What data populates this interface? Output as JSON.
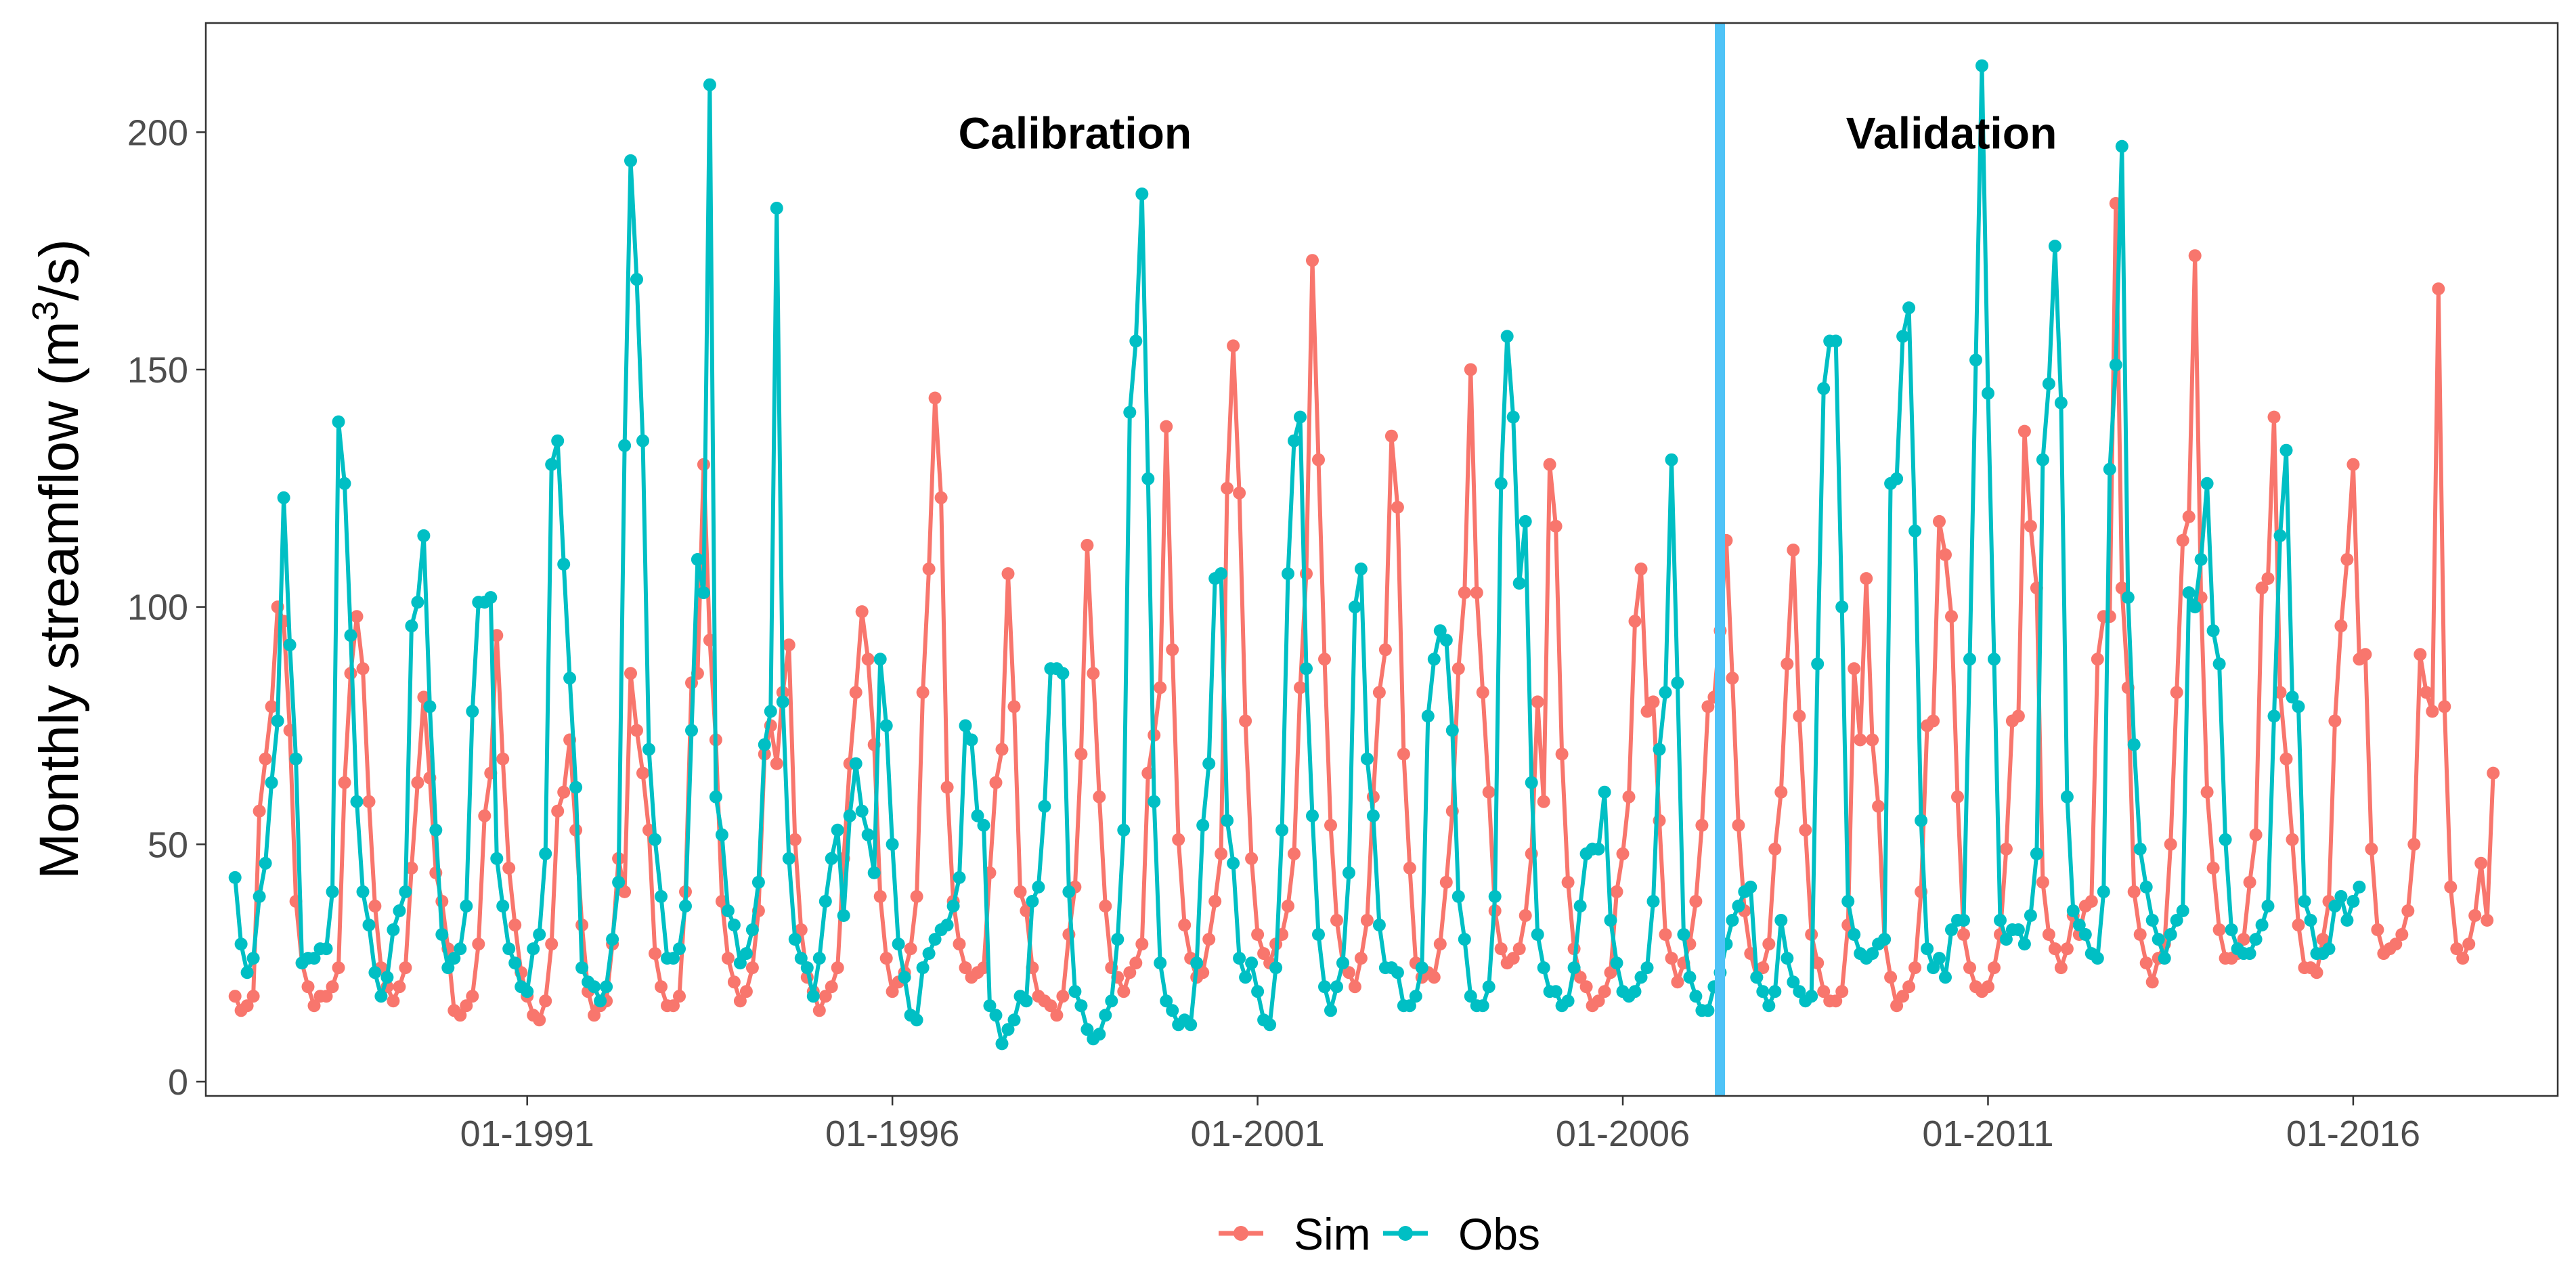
{
  "chart_data": {
    "type": "line",
    "title": "",
    "xlabel": "",
    "ylabel": "Monthly streamflow (m",
    "ylabel_superscript": "3",
    "ylabel_suffix": "/s)",
    "x_start": "1987-01",
    "x_range_years": [
      1986.6,
      2018.8
    ],
    "ylim": [
      -3,
      223
    ],
    "y_ticks": [
      0,
      50,
      100,
      150,
      200
    ],
    "y_tick_labels": [
      "0",
      "50",
      "100",
      "150",
      "200"
    ],
    "x_tick_years": [
      1991,
      1996,
      2001,
      2006,
      2011,
      2016
    ],
    "x_tick_labels": [
      "01-1991",
      "01-1996",
      "01-2001",
      "01-2006",
      "01-2011",
      "01-2016"
    ],
    "split_date_year": 2007.33,
    "split_color": "#4fc3f7",
    "annotations": [
      {
        "text": "Calibration",
        "x_year": 1998.5,
        "y": 200
      },
      {
        "text": "Validation",
        "x_year": 2010.5,
        "y": 200
      }
    ],
    "legend_position": "bottom",
    "series": [
      {
        "name": "Sim",
        "color": "#f8766d",
        "values": [
          18,
          15,
          16,
          18,
          57,
          68,
          79,
          100,
          97,
          74,
          38,
          25,
          20,
          16,
          18,
          18,
          20,
          24,
          63,
          86,
          98,
          87,
          59,
          37,
          24,
          20,
          17,
          20,
          24,
          45,
          63,
          81,
          64,
          44,
          38,
          28,
          15,
          14,
          16,
          18,
          29,
          56,
          65,
          94,
          68,
          45,
          33,
          23,
          18,
          14,
          13,
          17,
          29,
          57,
          61,
          72,
          53,
          33,
          19,
          14,
          16,
          17,
          29,
          47,
          40,
          86,
          74,
          65,
          53,
          27,
          20,
          16,
          16,
          18,
          40,
          84,
          86,
          130,
          93,
          72,
          38,
          26,
          21,
          17,
          19,
          24,
          36,
          69,
          75,
          67,
          82,
          92,
          51,
          32,
          22,
          19,
          15,
          18,
          20,
          24,
          47,
          67,
          82,
          99,
          89,
          71,
          39,
          26,
          19,
          21,
          23,
          28,
          39,
          82,
          108,
          144,
          123,
          62,
          38,
          29,
          24,
          22,
          23,
          24,
          44,
          63,
          70,
          107,
          79,
          40,
          36,
          24,
          18,
          17,
          16,
          14,
          18,
          31,
          41,
          69,
          113,
          86,
          60,
          37,
          24,
          22,
          19,
          23,
          25,
          29,
          65,
          73,
          83,
          138,
          91,
          51,
          33,
          26,
          22,
          23,
          30,
          38,
          48,
          125,
          155,
          124,
          76,
          47,
          31,
          27,
          25,
          29,
          31,
          37,
          48,
          83,
          107,
          173,
          131,
          89,
          54,
          34,
          25,
          23,
          20,
          26,
          34,
          60,
          82,
          91,
          136,
          121,
          69,
          45,
          25,
          22,
          23,
          22,
          29,
          42,
          57,
          87,
          103,
          150,
          103,
          82,
          61,
          36,
          28,
          25,
          26,
          28,
          35,
          48,
          80,
          59,
          130,
          117,
          69,
          42,
          28,
          22,
          20,
          16,
          17,
          19,
          23,
          40,
          48,
          60,
          97,
          108,
          78,
          80,
          55,
          31,
          26,
          21,
          25,
          29,
          38,
          54,
          79,
          81,
          95,
          114,
          85,
          54,
          36,
          27,
          22,
          24,
          29,
          49,
          61,
          88,
          112,
          77,
          53,
          31,
          25,
          19,
          17,
          17,
          19,
          33,
          87,
          72,
          106,
          72,
          58,
          30,
          22,
          16,
          18,
          20,
          24,
          40,
          75,
          76,
          118,
          111,
          98,
          60,
          31,
          24,
          20,
          19,
          20,
          24,
          31,
          49,
          76,
          77,
          137,
          117,
          104,
          42,
          31,
          28,
          24,
          28,
          35,
          31,
          37,
          38,
          89,
          98,
          98,
          185,
          104,
          83,
          40,
          31,
          25,
          21,
          26,
          29,
          50,
          82,
          114,
          119,
          174,
          102,
          61,
          45,
          32,
          26,
          26,
          27,
          30,
          42,
          52,
          104,
          106,
          140,
          82,
          68,
          51,
          33,
          24,
          24,
          23,
          30,
          38,
          76,
          96,
          110,
          130,
          89,
          90,
          49,
          32,
          27,
          28,
          29,
          31,
          36,
          50,
          90,
          82,
          78,
          167,
          79,
          41,
          28,
          26,
          29,
          35,
          46,
          34,
          65
        ]
      },
      {
        "name": "Obs",
        "color": "#00bfc4",
        "values": [
          43,
          29,
          23,
          26,
          39,
          46,
          63,
          76,
          123,
          92,
          68,
          25,
          26,
          26,
          28,
          28,
          40,
          139,
          126,
          94,
          59,
          40,
          33,
          23,
          18,
          22,
          32,
          36,
          40,
          96,
          101,
          115,
          79,
          53,
          31,
          24,
          26,
          28,
          37,
          78,
          101,
          101,
          102,
          47,
          37,
          28,
          25,
          20,
          19,
          28,
          31,
          48,
          130,
          135,
          109,
          85,
          62,
          24,
          21,
          20,
          17,
          20,
          30,
          42,
          134,
          194,
          169,
          135,
          70,
          51,
          39,
          26,
          26,
          28,
          37,
          74,
          110,
          103,
          210,
          60,
          52,
          36,
          33,
          25,
          27,
          32,
          42,
          71,
          78,
          184,
          80,
          47,
          30,
          26,
          24,
          18,
          26,
          38,
          47,
          53,
          35,
          56,
          67,
          57,
          52,
          44,
          89,
          75,
          50,
          29,
          22,
          14,
          13,
          24,
          27,
          30,
          32,
          33,
          37,
          43,
          75,
          72,
          56,
          54,
          16,
          14,
          8,
          11,
          13,
          18,
          17,
          38,
          41,
          58,
          87,
          87,
          86,
          40,
          19,
          16,
          11,
          9,
          10,
          14,
          17,
          30,
          53,
          141,
          156,
          187,
          127,
          59,
          25,
          17,
          15,
          12,
          13,
          12,
          25,
          54,
          67,
          106,
          107,
          55,
          46,
          26,
          22,
          25,
          19,
          13,
          12,
          24,
          53,
          107,
          135,
          140,
          87,
          56,
          31,
          20,
          15,
          20,
          25,
          44,
          100,
          108,
          68,
          56,
          33,
          24,
          24,
          23,
          16,
          16,
          18,
          24,
          77,
          89,
          95,
          93,
          74,
          39,
          30,
          18,
          16,
          16,
          20,
          39,
          126,
          157,
          140,
          105,
          118,
          63,
          31,
          24,
          19,
          19,
          16,
          17,
          24,
          37,
          48,
          49,
          49,
          61,
          34,
          25,
          19,
          18,
          19,
          22,
          24,
          38,
          70,
          82,
          131,
          84,
          31,
          22,
          18,
          15,
          15,
          20,
          23,
          29,
          34,
          37,
          40,
          41,
          22,
          19,
          16,
          19,
          34,
          26,
          21,
          19,
          17,
          18,
          88,
          146,
          156,
          156,
          100,
          38,
          31,
          27,
          26,
          27,
          29,
          30,
          126,
          127,
          157,
          163,
          116,
          55,
          28,
          24,
          26,
          22,
          32,
          34,
          34,
          89,
          152,
          214,
          145,
          89,
          34,
          30,
          32,
          32,
          29,
          35,
          48,
          131,
          147,
          176,
          143,
          60,
          36,
          33,
          31,
          27,
          26,
          40,
          129,
          151,
          197,
          102,
          71,
          49,
          41,
          34,
          30,
          26,
          31,
          34,
          36,
          103,
          100,
          110,
          126,
          95,
          88,
          51,
          32,
          28,
          27,
          27,
          30,
          33,
          37,
          77,
          115,
          133,
          81,
          79,
          38,
          34,
          27,
          27,
          28,
          37,
          39,
          34,
          38,
          41
        ]
      }
    ]
  }
}
